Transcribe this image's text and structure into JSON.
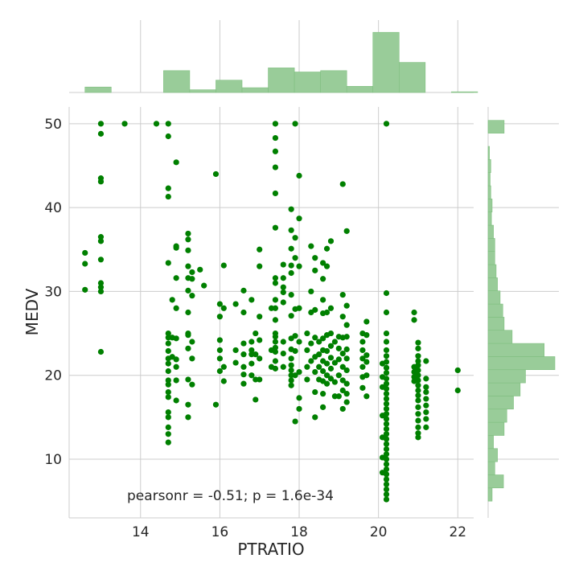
{
  "chart_data": {
    "type": "scatter",
    "xlabel": "PTRATIO",
    "ylabel": "MEDV",
    "xlim": [
      12.2,
      22.4
    ],
    "ylim": [
      3.0,
      52.0
    ],
    "x_ticks": [
      14,
      16,
      18,
      20,
      22
    ],
    "y_ticks": [
      10,
      20,
      30,
      40,
      50
    ],
    "grid": true,
    "annotation": "pearsonr = -0.51; p = 1.6e-34",
    "colors": {
      "points": "#008000",
      "hist": "#99cc99"
    },
    "points": [
      [
        12.6,
        34.6
      ],
      [
        12.6,
        33.3
      ],
      [
        12.6,
        30.2
      ],
      [
        13.0,
        50.0
      ],
      [
        13.0,
        48.8
      ],
      [
        13.0,
        43.5
      ],
      [
        13.0,
        43.1
      ],
      [
        13.0,
        36.5
      ],
      [
        13.0,
        36.0
      ],
      [
        13.0,
        33.8
      ],
      [
        13.0,
        31.0
      ],
      [
        13.0,
        30.5
      ],
      [
        13.0,
        30.0
      ],
      [
        13.0,
        22.8
      ],
      [
        13.6,
        50.0
      ],
      [
        14.4,
        50.0
      ],
      [
        14.7,
        50.0
      ],
      [
        14.7,
        48.5
      ],
      [
        14.7,
        42.3
      ],
      [
        14.7,
        41.3
      ],
      [
        14.7,
        33.4
      ],
      [
        14.7,
        25.0
      ],
      [
        14.7,
        24.5
      ],
      [
        14.7,
        23.8
      ],
      [
        14.7,
        22.9
      ],
      [
        14.7,
        22.0
      ],
      [
        14.7,
        21.4
      ],
      [
        14.7,
        20.5
      ],
      [
        14.7,
        19.4
      ],
      [
        14.7,
        18.9
      ],
      [
        14.7,
        18.0
      ],
      [
        14.7,
        17.4
      ],
      [
        14.7,
        15.6
      ],
      [
        14.7,
        15.0
      ],
      [
        14.7,
        13.8
      ],
      [
        14.7,
        13.0
      ],
      [
        14.7,
        12.0
      ],
      [
        14.8,
        29.0
      ],
      [
        14.8,
        24.5
      ],
      [
        14.8,
        22.2
      ],
      [
        14.9,
        45.4
      ],
      [
        14.9,
        35.4
      ],
      [
        14.9,
        35.2
      ],
      [
        14.9,
        31.6
      ],
      [
        14.9,
        28.0
      ],
      [
        14.9,
        24.4
      ],
      [
        14.9,
        21.9
      ],
      [
        14.9,
        21.0
      ],
      [
        14.9,
        19.4
      ],
      [
        14.9,
        17.0
      ],
      [
        15.2,
        36.9
      ],
      [
        15.2,
        36.2
      ],
      [
        15.2,
        34.9
      ],
      [
        15.2,
        33.0
      ],
      [
        15.2,
        31.6
      ],
      [
        15.2,
        30.1
      ],
      [
        15.2,
        27.5
      ],
      [
        15.2,
        25.0
      ],
      [
        15.2,
        24.8
      ],
      [
        15.2,
        23.2
      ],
      [
        15.2,
        19.5
      ],
      [
        15.2,
        16.5
      ],
      [
        15.2,
        15.0
      ],
      [
        15.3,
        32.3
      ],
      [
        15.3,
        31.5
      ],
      [
        15.3,
        29.5
      ],
      [
        15.3,
        24.0
      ],
      [
        15.3,
        22.0
      ],
      [
        15.3,
        18.9
      ],
      [
        15.5,
        32.6
      ],
      [
        15.6,
        30.7
      ],
      [
        15.9,
        44.0
      ],
      [
        15.9,
        16.5
      ],
      [
        16.0,
        28.5
      ],
      [
        16.0,
        27.0
      ],
      [
        16.0,
        24.2
      ],
      [
        16.0,
        23.0
      ],
      [
        16.0,
        22.0
      ],
      [
        16.0,
        20.5
      ],
      [
        16.1,
        33.1
      ],
      [
        16.1,
        28.0
      ],
      [
        16.1,
        21.0
      ],
      [
        16.1,
        19.3
      ],
      [
        16.4,
        28.5
      ],
      [
        16.4,
        23.0
      ],
      [
        16.4,
        21.5
      ],
      [
        16.6,
        30.1
      ],
      [
        16.6,
        27.5
      ],
      [
        16.6,
        23.8
      ],
      [
        16.6,
        22.5
      ],
      [
        16.6,
        21.0
      ],
      [
        16.6,
        20.1
      ],
      [
        16.6,
        19.0
      ],
      [
        16.8,
        29.0
      ],
      [
        16.8,
        24.0
      ],
      [
        16.8,
        23.0
      ],
      [
        16.8,
        22.5
      ],
      [
        16.8,
        21.4
      ],
      [
        16.8,
        20.0
      ],
      [
        16.9,
        25.0
      ],
      [
        16.9,
        22.5
      ],
      [
        16.9,
        19.5
      ],
      [
        16.9,
        17.1
      ],
      [
        17.0,
        35.0
      ],
      [
        17.0,
        33.0
      ],
      [
        17.0,
        27.0
      ],
      [
        17.0,
        24.2
      ],
      [
        17.0,
        22.0
      ],
      [
        17.0,
        19.5
      ],
      [
        17.3,
        28.0
      ],
      [
        17.3,
        23.0
      ],
      [
        17.3,
        21.0
      ],
      [
        17.4,
        50.0
      ],
      [
        17.4,
        48.3
      ],
      [
        17.4,
        46.7
      ],
      [
        17.4,
        44.8
      ],
      [
        17.4,
        41.7
      ],
      [
        17.4,
        37.6
      ],
      [
        17.4,
        31.6
      ],
      [
        17.4,
        31.0
      ],
      [
        17.4,
        29.0
      ],
      [
        17.4,
        28.0
      ],
      [
        17.4,
        26.6
      ],
      [
        17.4,
        25.0
      ],
      [
        17.4,
        24.6
      ],
      [
        17.4,
        24.0
      ],
      [
        17.4,
        23.3
      ],
      [
        17.4,
        22.8
      ],
      [
        17.4,
        21.7
      ],
      [
        17.4,
        20.8
      ],
      [
        17.6,
        33.2
      ],
      [
        17.6,
        31.6
      ],
      [
        17.6,
        30.5
      ],
      [
        17.6,
        29.9
      ],
      [
        17.6,
        28.7
      ],
      [
        17.6,
        24.0
      ],
      [
        17.6,
        22.6
      ],
      [
        17.6,
        21.0
      ],
      [
        17.8,
        39.8
      ],
      [
        17.8,
        37.3
      ],
      [
        17.8,
        35.1
      ],
      [
        17.8,
        33.1
      ],
      [
        17.8,
        32.2
      ],
      [
        17.8,
        29.6
      ],
      [
        17.8,
        27.1
      ],
      [
        17.8,
        24.4
      ],
      [
        17.8,
        23.1
      ],
      [
        17.8,
        22.0
      ],
      [
        17.8,
        21.2
      ],
      [
        17.8,
        20.6
      ],
      [
        17.8,
        20.0
      ],
      [
        17.8,
        19.4
      ],
      [
        17.8,
        18.8
      ],
      [
        17.9,
        50.0
      ],
      [
        17.9,
        36.4
      ],
      [
        17.9,
        34.0
      ],
      [
        17.9,
        27.9
      ],
      [
        17.9,
        24.7
      ],
      [
        17.9,
        22.9
      ],
      [
        17.9,
        20.0
      ],
      [
        17.9,
        14.5
      ],
      [
        18.0,
        43.8
      ],
      [
        18.0,
        38.7
      ],
      [
        18.0,
        33.0
      ],
      [
        18.0,
        28.0
      ],
      [
        18.0,
        24.0
      ],
      [
        18.0,
        20.4
      ],
      [
        18.0,
        17.3
      ],
      [
        18.0,
        16.0
      ],
      [
        18.2,
        25.0
      ],
      [
        18.2,
        23.0
      ],
      [
        18.2,
        21.0
      ],
      [
        18.2,
        19.5
      ],
      [
        18.3,
        35.4
      ],
      [
        18.3,
        30.0
      ],
      [
        18.3,
        27.5
      ],
      [
        18.3,
        23.8
      ],
      [
        18.3,
        21.7
      ],
      [
        18.4,
        34.0
      ],
      [
        18.4,
        32.5
      ],
      [
        18.4,
        27.8
      ],
      [
        18.4,
        24.5
      ],
      [
        18.4,
        22.2
      ],
      [
        18.4,
        20.4
      ],
      [
        18.4,
        18.0
      ],
      [
        18.4,
        15.0
      ],
      [
        18.5,
        24.0
      ],
      [
        18.5,
        22.5
      ],
      [
        18.5,
        21.0
      ],
      [
        18.5,
        19.5
      ],
      [
        18.6,
        33.4
      ],
      [
        18.6,
        31.5
      ],
      [
        18.6,
        29.0
      ],
      [
        18.6,
        27.4
      ],
      [
        18.6,
        24.4
      ],
      [
        18.6,
        23.0
      ],
      [
        18.6,
        21.7
      ],
      [
        18.6,
        20.5
      ],
      [
        18.6,
        19.3
      ],
      [
        18.6,
        17.8
      ],
      [
        18.6,
        16.2
      ],
      [
        18.7,
        35.1
      ],
      [
        18.7,
        33.0
      ],
      [
        18.7,
        27.5
      ],
      [
        18.7,
        24.8
      ],
      [
        18.7,
        22.9
      ],
      [
        18.7,
        21.4
      ],
      [
        18.7,
        20.0
      ],
      [
        18.7,
        19.0
      ],
      [
        18.8,
        36.0
      ],
      [
        18.8,
        28.0
      ],
      [
        18.8,
        25.0
      ],
      [
        18.8,
        23.5
      ],
      [
        18.8,
        22.1
      ],
      [
        18.8,
        20.8
      ],
      [
        18.8,
        19.6
      ],
      [
        18.9,
        24.0
      ],
      [
        18.9,
        21.5
      ],
      [
        18.9,
        19.2
      ],
      [
        18.9,
        17.5
      ],
      [
        19.0,
        24.6
      ],
      [
        19.0,
        23.2
      ],
      [
        19.0,
        21.9
      ],
      [
        19.0,
        20.0
      ],
      [
        19.0,
        17.5
      ],
      [
        19.1,
        42.8
      ],
      [
        19.1,
        29.6
      ],
      [
        19.1,
        27.0
      ],
      [
        19.1,
        24.5
      ],
      [
        19.1,
        22.6
      ],
      [
        19.1,
        21.0
      ],
      [
        19.1,
        19.4
      ],
      [
        19.1,
        18.2
      ],
      [
        19.1,
        16.0
      ],
      [
        19.2,
        37.2
      ],
      [
        19.2,
        28.3
      ],
      [
        19.2,
        26.0
      ],
      [
        19.2,
        24.6
      ],
      [
        19.2,
        23.1
      ],
      [
        19.2,
        22.0
      ],
      [
        19.2,
        20.6
      ],
      [
        19.2,
        19.0
      ],
      [
        19.2,
        17.8
      ],
      [
        19.2,
        16.8
      ],
      [
        19.6,
        25.0
      ],
      [
        19.6,
        24.0
      ],
      [
        19.6,
        23.0
      ],
      [
        19.6,
        22.0
      ],
      [
        19.6,
        21.0
      ],
      [
        19.6,
        19.8
      ],
      [
        19.6,
        18.5
      ],
      [
        19.7,
        26.4
      ],
      [
        19.7,
        24.8
      ],
      [
        19.7,
        22.4
      ],
      [
        19.7,
        21.6
      ],
      [
        19.7,
        20.0
      ],
      [
        19.7,
        17.5
      ],
      [
        20.1,
        21.4
      ],
      [
        20.1,
        19.8
      ],
      [
        20.1,
        18.6
      ],
      [
        20.2,
        50.0
      ],
      [
        20.2,
        29.8
      ],
      [
        20.2,
        27.5
      ],
      [
        20.2,
        25.0
      ],
      [
        20.2,
        24.0
      ],
      [
        20.2,
        23.0
      ],
      [
        20.2,
        22.3
      ],
      [
        20.2,
        21.6
      ],
      [
        20.2,
        20.9
      ],
      [
        20.2,
        20.3
      ],
      [
        20.2,
        19.6
      ],
      [
        20.2,
        19.0
      ],
      [
        20.2,
        18.4
      ],
      [
        20.2,
        17.8
      ],
      [
        20.2,
        17.2
      ],
      [
        20.2,
        16.6
      ],
      [
        20.2,
        16.0
      ],
      [
        20.2,
        15.4
      ],
      [
        20.2,
        14.8
      ],
      [
        20.2,
        14.2
      ],
      [
        20.2,
        13.6
      ],
      [
        20.2,
        13.0
      ],
      [
        20.2,
        12.4
      ],
      [
        20.2,
        11.8
      ],
      [
        20.2,
        11.2
      ],
      [
        20.2,
        10.6
      ],
      [
        20.2,
        10.0
      ],
      [
        20.2,
        9.4
      ],
      [
        20.2,
        8.8
      ],
      [
        20.2,
        8.2
      ],
      [
        20.2,
        7.6
      ],
      [
        20.2,
        7.0
      ],
      [
        20.2,
        6.4
      ],
      [
        20.2,
        5.8
      ],
      [
        20.2,
        5.2
      ],
      [
        20.1,
        15.2
      ],
      [
        20.1,
        12.6
      ],
      [
        20.1,
        10.2
      ],
      [
        20.1,
        8.4
      ],
      [
        20.9,
        27.5
      ],
      [
        20.9,
        26.6
      ],
      [
        20.9,
        21.0
      ],
      [
        20.9,
        20.4
      ],
      [
        20.9,
        19.8
      ],
      [
        20.9,
        19.3
      ],
      [
        21.0,
        23.9
      ],
      [
        21.0,
        23.2
      ],
      [
        21.0,
        22.3
      ],
      [
        21.0,
        21.7
      ],
      [
        21.0,
        21.2
      ],
      [
        21.0,
        20.6
      ],
      [
        21.0,
        20.0
      ],
      [
        21.0,
        19.4
      ],
      [
        21.0,
        18.8
      ],
      [
        21.0,
        18.2
      ],
      [
        21.0,
        17.6
      ],
      [
        21.0,
        17.0
      ],
      [
        21.0,
        16.2
      ],
      [
        21.0,
        15.4
      ],
      [
        21.0,
        14.6
      ],
      [
        21.0,
        13.8
      ],
      [
        21.0,
        13.1
      ],
      [
        21.0,
        12.6
      ],
      [
        21.2,
        21.7
      ],
      [
        21.2,
        19.6
      ],
      [
        21.2,
        18.6
      ],
      [
        21.2,
        18.0
      ],
      [
        21.2,
        17.2
      ],
      [
        21.2,
        16.4
      ],
      [
        21.2,
        15.6
      ],
      [
        21.2,
        14.8
      ],
      [
        21.2,
        13.8
      ],
      [
        22.0,
        20.6
      ],
      [
        22.0,
        18.2
      ]
    ],
    "x_hist": {
      "bin_edges": [
        12.6,
        13.26,
        13.92,
        14.58,
        15.24,
        15.9,
        16.56,
        17.22,
        17.88,
        18.54,
        19.2,
        19.86,
        20.52,
        21.18,
        21.84
      ],
      "heights": [
        0.08,
        0.0,
        0.0,
        0.32,
        0.04,
        0.18,
        0.07,
        0.36,
        0.3,
        0.32,
        0.09,
        0.88,
        0.44,
        0.0
      ],
      "tail": [
        0.01
      ]
    },
    "y_hist": {
      "bin_edges": [
        5.0,
        6.57,
        8.13,
        9.7,
        11.27,
        12.83,
        14.4,
        15.97,
        17.53,
        19.1,
        20.67,
        22.23,
        23.8,
        25.37,
        26.93,
        28.5,
        30.07,
        31.63,
        33.2,
        34.77,
        36.33,
        37.9,
        39.47,
        41.03,
        42.6,
        44.17,
        45.73,
        47.3,
        48.87
      ],
      "widths": [
        0.06,
        0.23,
        0.1,
        0.14,
        0.08,
        0.24,
        0.28,
        0.38,
        0.48,
        0.56,
        1.0,
        0.84,
        0.36,
        0.24,
        0.22,
        0.18,
        0.14,
        0.12,
        0.1,
        0.1,
        0.08,
        0.05,
        0.06,
        0.04,
        0.03,
        0.04,
        0.02,
        0.0,
        0.24
      ]
    }
  }
}
